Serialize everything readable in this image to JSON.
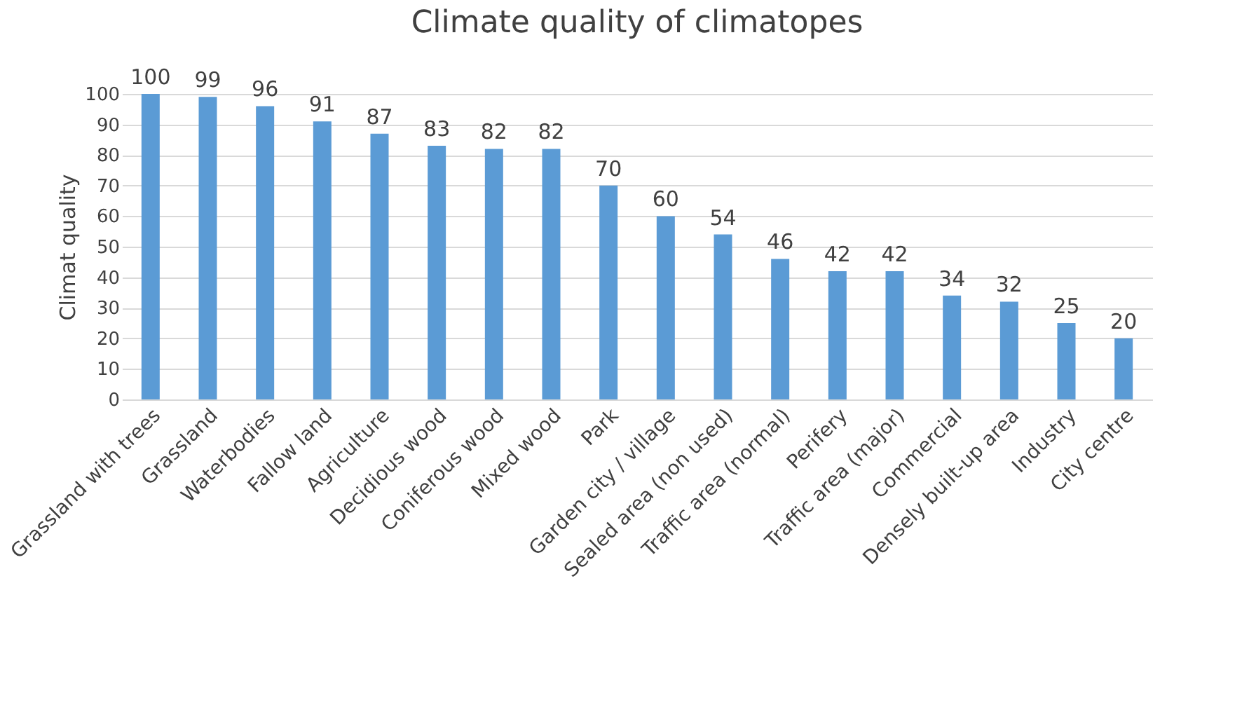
{
  "chart_data": {
    "type": "bar",
    "title": "Climate quality of climatopes",
    "ylabel": "Climat quality",
    "categories": [
      "Grassland with trees",
      "Grassland",
      "Waterbodies",
      "Fallow land",
      "Agriculture",
      "Decidious wood",
      "Coniferous wood",
      "Mixed wood",
      "Park",
      "Garden city / village",
      "Sealed area (non used)",
      "Traffic area (normal)",
      "Perifery",
      "Traffic area (major)",
      "Commercial",
      "Densely built-up area",
      "Industry",
      "City centre"
    ],
    "values": [
      100,
      99,
      96,
      91,
      87,
      83,
      82,
      82,
      70,
      60,
      54,
      46,
      42,
      42,
      34,
      32,
      25,
      20
    ],
    "color": "#5b9bd5",
    "ylim": [
      0,
      100
    ],
    "yticks": [
      0,
      10,
      20,
      30,
      40,
      50,
      60,
      70,
      80,
      90,
      100
    ],
    "grid": "y",
    "data_labels": true
  }
}
